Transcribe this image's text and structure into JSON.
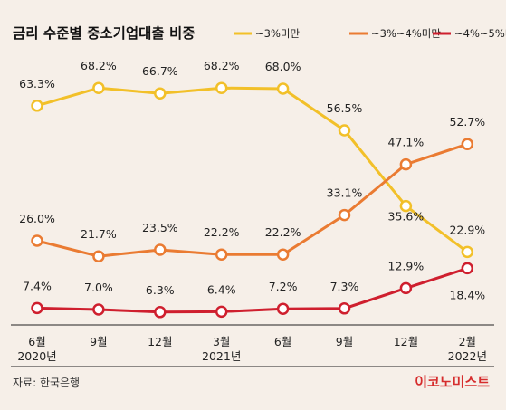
{
  "chart_data": {
    "type": "line",
    "title": "금리 수준별 중소기업대출 비중",
    "categories": [
      "6월\n2020년",
      "9월",
      "12월",
      "3월\n2021년",
      "6월",
      "9월",
      "12월",
      "2월\n2022년"
    ],
    "series": [
      {
        "name": "~3%미만",
        "color": "#f2c029",
        "values": [
          63.3,
          68.2,
          66.7,
          68.2,
          68.0,
          56.5,
          35.6,
          22.9
        ]
      },
      {
        "name": "~3%~4%미만",
        "color": "#ea7b32",
        "values": [
          26.0,
          21.7,
          23.5,
          22.2,
          22.2,
          33.1,
          47.1,
          52.7
        ]
      },
      {
        "name": "~4%~5%미만",
        "color": "#cf1f2e",
        "values": [
          7.4,
          7.0,
          6.3,
          6.4,
          7.2,
          7.3,
          12.9,
          18.4
        ]
      }
    ],
    "data_labels": [
      [
        "63.3%",
        "68.2%",
        "66.7%",
        "68.2%",
        "68.0%",
        "56.5%",
        "35.6%",
        "22.9%"
      ],
      [
        "26.0%",
        "21.7%",
        "23.5%",
        "22.2%",
        "22.2%",
        "33.1%",
        "47.1%",
        "52.7%"
      ],
      [
        "7.4%",
        "7.0%",
        "6.3%",
        "6.4%",
        "7.2%",
        "7.3%",
        "12.9%",
        "18.4%"
      ]
    ],
    "grid": false,
    "legend": "top-right"
  },
  "footer": {
    "source": "자료: 한국은행",
    "brand": "이코노미스트"
  },
  "colors": {
    "background": "#f6efe8",
    "axis": "#222222"
  }
}
